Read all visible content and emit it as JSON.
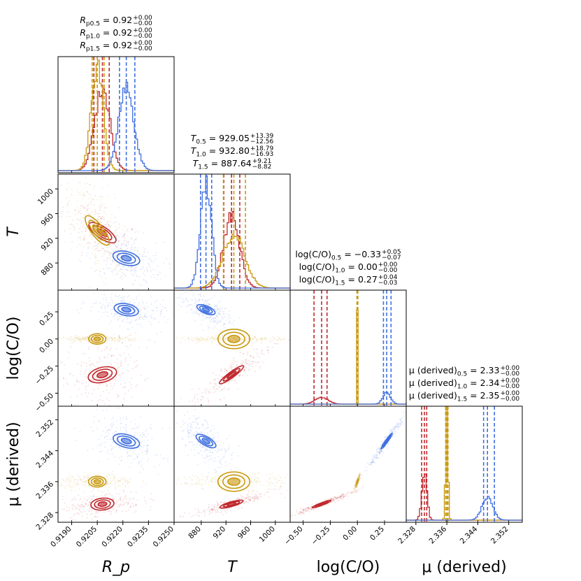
{
  "chart_data": {
    "type": "corner",
    "parameters": [
      {
        "key": "Rp",
        "label": "R_p",
        "range": [
          0.9182,
          0.925
        ],
        "ticks": [
          0.919,
          0.9205,
          0.922,
          0.9235,
          0.925
        ],
        "tick_labels": [
          "0.9190",
          "0.9205",
          "0.9220",
          "0.9235",
          "0.9250"
        ]
      },
      {
        "key": "T",
        "label": "T",
        "range": [
          836,
          1024
        ],
        "ticks": [
          880,
          920,
          960,
          1000
        ],
        "tick_labels": [
          "880",
          "920",
          "960",
          "1000"
        ]
      },
      {
        "key": "logCO",
        "label": "log(C/O)",
        "range": [
          -0.62,
          0.45
        ],
        "ticks": [
          -0.5,
          -0.25,
          0.0,
          0.25
        ],
        "tick_labels": [
          "−0.50",
          "−0.25",
          "0.00",
          "0.25"
        ]
      },
      {
        "key": "mu",
        "label": "μ (derived)",
        "range": [
          2.3255,
          2.3555
        ],
        "ticks": [
          2.328,
          2.336,
          2.344,
          2.352
        ],
        "tick_labels": [
          "2.328",
          "2.336",
          "2.344",
          "2.352"
        ]
      }
    ],
    "axis_labels": {
      "x": [
        "R_p",
        "T",
        "log(C/O)",
        "μ (derived)"
      ],
      "y": [
        "T",
        "log(C/O)",
        "μ (derived)"
      ]
    },
    "series": [
      {
        "name": "0.5",
        "color": "#c0282d",
        "median": {
          "Rp": 0.9208,
          "T": 929.05,
          "logCO": -0.33,
          "mu": 2.33
        },
        "plus": {
          "Rp": 0.0,
          "T": 13.39,
          "logCO": 0.05,
          "mu": 0.0
        },
        "minus": {
          "Rp": 0.0,
          "T": 12.56,
          "logCO": 0.07,
          "mu": 0.0
        },
        "quantiles": {
          "Rp": [
            0.9203,
            0.9208,
            0.9212
          ],
          "T": [
            916.5,
            929.05,
            942.4
          ],
          "logCO": [
            -0.4,
            -0.33,
            -0.28
          ],
          "mu": [
            2.3295,
            2.3302,
            2.3308
          ]
        }
      },
      {
        "name": "1.0",
        "color": "#c99a10",
        "median": {
          "Rp": 0.9205,
          "T": 932.8,
          "logCO": 0.0,
          "mu": 2.34
        },
        "plus": {
          "Rp": 0.0,
          "T": 18.79,
          "logCO": 0.0,
          "mu": 0.0
        },
        "minus": {
          "Rp": 0.0,
          "T": 16.93,
          "logCO": 0.0,
          "mu": 0.0
        },
        "quantiles": {
          "Rp": [
            0.9202,
            0.9205,
            0.9209
          ],
          "T": [
            915.9,
            932.8,
            951.6
          ],
          "logCO": [
            -0.004,
            0.0,
            0.004
          ],
          "mu": [
            2.3357,
            2.336,
            2.3363
          ]
        }
      },
      {
        "name": "1.5",
        "color": "#3f6fe0",
        "median": {
          "Rp": 0.9222,
          "T": 887.64,
          "logCO": 0.27,
          "mu": 2.35
        },
        "plus": {
          "Rp": 0.0,
          "T": 9.21,
          "logCO": 0.04,
          "mu": 0.0
        },
        "minus": {
          "Rp": 0.0,
          "T": 8.82,
          "logCO": 0.03,
          "mu": 0.0
        },
        "quantiles": {
          "Rp": [
            0.9218,
            0.9222,
            0.9227
          ],
          "T": [
            878.8,
            887.64,
            896.9
          ],
          "logCO": [
            0.24,
            0.27,
            0.31
          ],
          "mu": [
            2.3455,
            2.3465,
            2.3483
          ]
        }
      }
    ],
    "headers": {
      "Rp": [
        {
          "sym": "R",
          "sub": "p0.5",
          "value": "0.92",
          "plus": "+0.00",
          "minus": "−0.00"
        },
        {
          "sym": "R",
          "sub": "p1.0",
          "value": "0.92",
          "plus": "+0.00",
          "minus": "−0.00"
        },
        {
          "sym": "R",
          "sub": "p1.5",
          "value": "0.92",
          "plus": "+0.00",
          "minus": "−0.00"
        }
      ],
      "T": [
        {
          "sym": "T",
          "sub": "0.5",
          "value": "929.05",
          "plus": "+13.39",
          "minus": "−12.56"
        },
        {
          "sym": "T",
          "sub": "1.0",
          "value": "932.80",
          "plus": "+18.79",
          "minus": "−16.93"
        },
        {
          "sym": "T",
          "sub": "1.5",
          "value": "887.64",
          "plus": "+9.21",
          "minus": "−8.82"
        }
      ],
      "logCO": [
        {
          "sym": "log(C/O)",
          "sub": "0.5",
          "value": "−0.33",
          "plus": "+0.05",
          "minus": "−0.07"
        },
        {
          "sym": "log(C/O)",
          "sub": "1.0",
          "value": "0.00",
          "plus": "+0.00",
          "minus": "−0.00"
        },
        {
          "sym": "log(C/O)",
          "sub": "1.5",
          "value": "0.27",
          "plus": "+0.04",
          "minus": "−0.03"
        }
      ],
      "mu": [
        {
          "sym": "μ (derived)",
          "sub": "0.5",
          "value": "2.33",
          "plus": "+0.00",
          "minus": "−0.00"
        },
        {
          "sym": "μ (derived)",
          "sub": "1.0",
          "value": "2.34",
          "plus": "+0.00",
          "minus": "−0.00"
        },
        {
          "sym": "μ (derived)",
          "sub": "1.5",
          "value": "2.35",
          "plus": "+0.00",
          "minus": "−0.00"
        }
      ]
    },
    "grid": false,
    "legend": "none"
  }
}
